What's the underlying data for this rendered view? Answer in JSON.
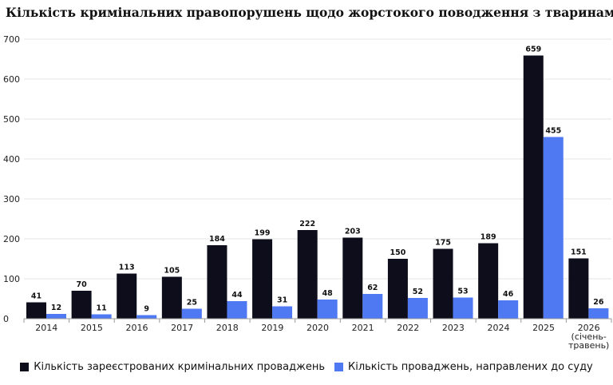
{
  "title": "Кількість кримінальних правопорушень щодо жорстокого поводження з тваринами",
  "chart_data": {
    "type": "bar",
    "title": "Кількість кримінальних правопорушень щодо жорстокого поводження з тваринами",
    "categories": [
      "2014",
      "2015",
      "2016",
      "2017",
      "2018",
      "2019",
      "2020",
      "2021",
      "2022",
      "2023",
      "2024",
      "2025",
      "2026\n(січень-\nтравень)"
    ],
    "series": [
      {
        "name": "Кількість зареєстрованих кримінальних проваджень",
        "color": "#0d0d1c",
        "values": [
          41,
          70,
          113,
          105,
          184,
          199,
          222,
          203,
          150,
          175,
          189,
          659,
          151
        ]
      },
      {
        "name": "Кількість проваджень, направлених до суду",
        "color": "#4f79f2",
        "values": [
          12,
          11,
          9,
          25,
          44,
          31,
          48,
          62,
          52,
          53,
          46,
          455,
          26
        ]
      }
    ],
    "ylim": [
      0,
      700
    ],
    "yticks": [
      0,
      100,
      200,
      300,
      400,
      500,
      600,
      700
    ],
    "grid": true,
    "legend_position": "bottom"
  }
}
